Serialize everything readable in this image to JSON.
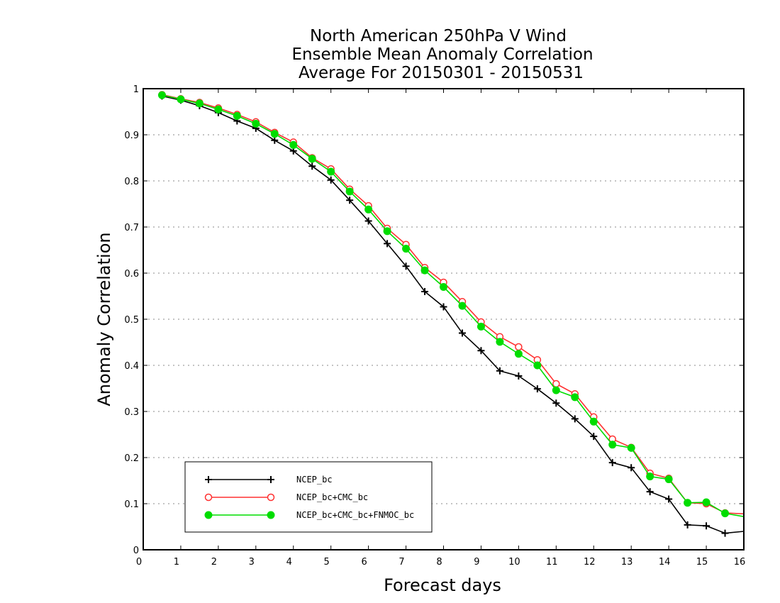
{
  "chart_data": {
    "type": "line",
    "title_lines": [
      "North American 250hPa V Wind",
      "Ensemble Mean Anomaly Correlation",
      "Average For 20150301 - 20150531"
    ],
    "xlabel": "Forecast days",
    "ylabel": "Anomaly Correlation",
    "xlim": [
      0,
      16
    ],
    "ylim": [
      0,
      1
    ],
    "x_ticks": [
      "0",
      "1",
      "2",
      "3",
      "4",
      "5",
      "6",
      "7",
      "8",
      "9",
      "10",
      "11",
      "12",
      "13",
      "14",
      "15",
      "16"
    ],
    "y_ticks": [
      "0",
      "0.1",
      "0.2",
      "0.3",
      "0.4",
      "0.5",
      "0.6",
      "0.7",
      "0.8",
      "0.9",
      "1"
    ],
    "grid": "horizontal dotted",
    "legend_position": "bottom-left",
    "x": [
      0.5,
      1.0,
      1.5,
      2.0,
      2.5,
      3.0,
      3.5,
      4.0,
      4.5,
      5.0,
      5.5,
      6.0,
      6.5,
      7.0,
      7.5,
      8.0,
      8.5,
      9.0,
      9.5,
      10.0,
      10.5,
      11.0,
      11.5,
      12.0,
      12.5,
      13.0,
      13.5,
      14.0,
      14.5,
      15.0,
      15.5,
      16.0
    ],
    "series": [
      {
        "name": "NCEP_bc",
        "color": "#000000",
        "marker": "plus",
        "values": [
          0.984,
          0.975,
          0.963,
          0.948,
          0.93,
          0.914,
          0.888,
          0.865,
          0.832,
          0.802,
          0.758,
          0.713,
          0.664,
          0.615,
          0.56,
          0.527,
          0.47,
          0.432,
          0.388,
          0.377,
          0.349,
          0.318,
          0.284,
          0.246,
          0.189,
          0.178,
          0.126,
          0.11,
          0.054,
          0.052,
          0.036,
          0.04
        ]
      },
      {
        "name": "NCEP_bc+CMC_bc",
        "color": "#ff3030",
        "marker": "open-circle",
        "values": [
          0.987,
          0.978,
          0.97,
          0.958,
          0.944,
          0.928,
          0.905,
          0.884,
          0.85,
          0.826,
          0.782,
          0.746,
          0.697,
          0.662,
          0.612,
          0.58,
          0.538,
          0.494,
          0.462,
          0.44,
          0.412,
          0.36,
          0.338,
          0.288,
          0.24,
          0.222,
          0.166,
          0.155,
          0.102,
          0.1,
          0.08,
          0.078
        ]
      },
      {
        "name": "NCEP_bc+CMC_bc+FNMOC_bc",
        "color": "#00dd00",
        "marker": "filled-circle",
        "values": [
          0.986,
          0.977,
          0.968,
          0.955,
          0.941,
          0.924,
          0.902,
          0.878,
          0.848,
          0.82,
          0.777,
          0.738,
          0.691,
          0.653,
          0.606,
          0.57,
          0.529,
          0.484,
          0.451,
          0.425,
          0.4,
          0.346,
          0.331,
          0.278,
          0.228,
          0.221,
          0.159,
          0.153,
          0.102,
          0.103,
          0.079,
          0.072
        ]
      }
    ]
  }
}
